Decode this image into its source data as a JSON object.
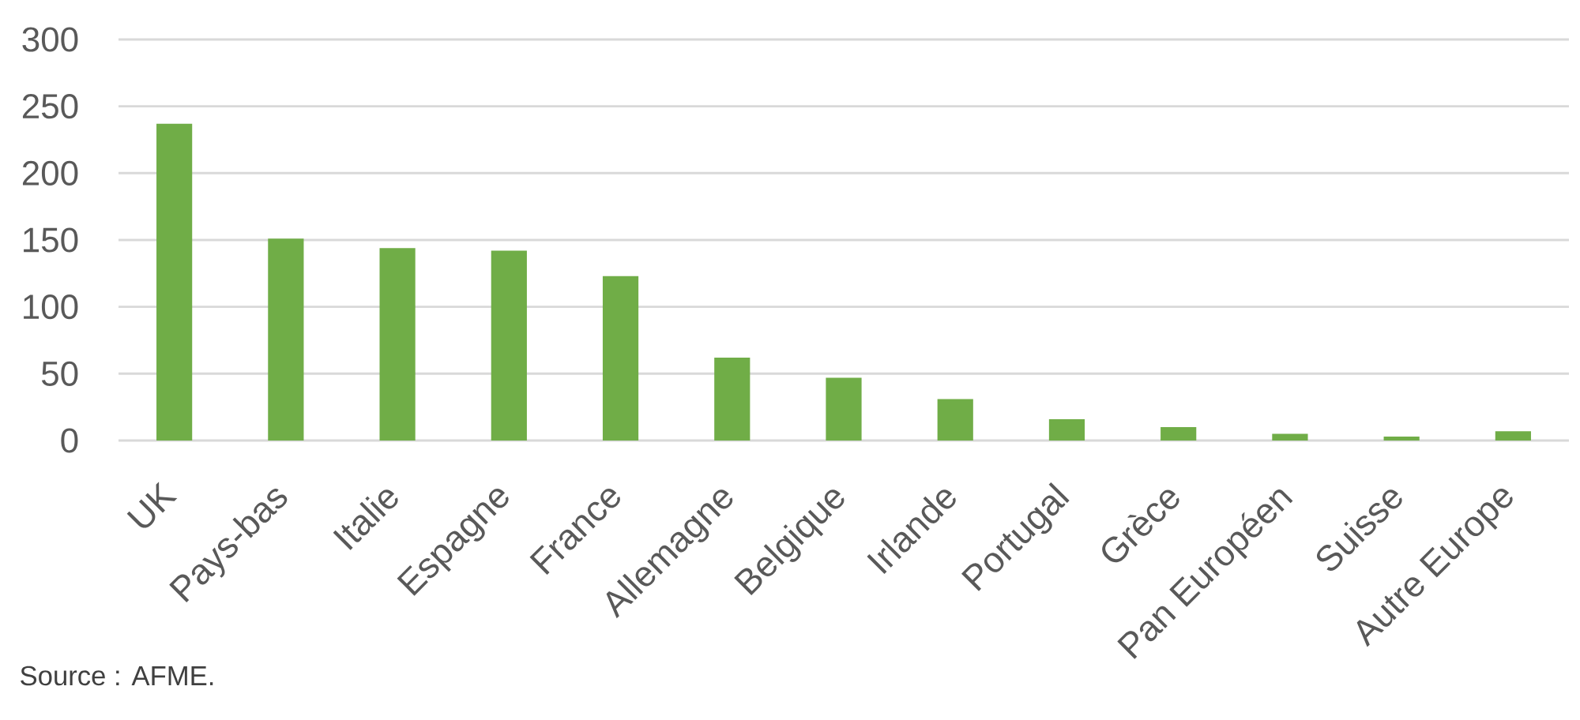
{
  "chart_data": {
    "type": "bar",
    "categories": [
      "UK",
      "Pays-bas",
      "Italie",
      "Espagne",
      "France",
      "Allemagne",
      "Belgique",
      "Irlande",
      "Portugal",
      "Grèce",
      "Pan Européen",
      "Suisse",
      "Autre Europe"
    ],
    "values": [
      237,
      151,
      144,
      142,
      123,
      62,
      47,
      31,
      16,
      10,
      5,
      3,
      7
    ],
    "color": "#70ad47",
    "ylim": [
      0,
      300
    ],
    "yticks": [
      0,
      50,
      100,
      150,
      200,
      250,
      300
    ],
    "grid": "y",
    "annotations": [
      "Source : AFME."
    ]
  }
}
